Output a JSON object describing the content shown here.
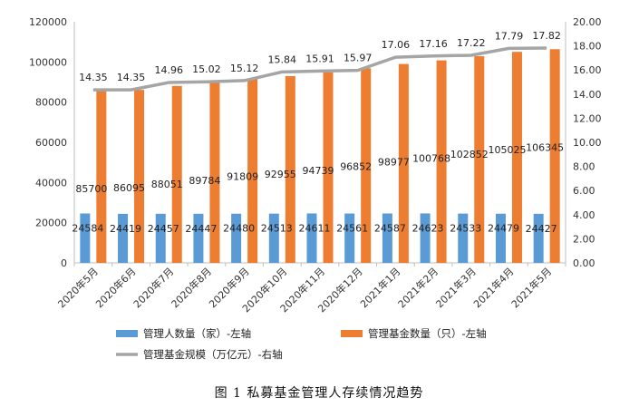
{
  "chart_data": {
    "type": "bar+line",
    "categories": [
      "2020年5月",
      "2020年6月",
      "2020年7月",
      "2020年8月",
      "2020年9月",
      "2020年10月",
      "2020年11月",
      "2020年12月",
      "2021年1月",
      "2021年2月",
      "2021年3月",
      "2021年4月",
      "2021年5月"
    ],
    "series": [
      {
        "name": "管理人数量（家）-左轴",
        "type": "bar",
        "axis": "left",
        "color": "#5B9BD5",
        "values": [
          24584,
          24419,
          24457,
          24447,
          24480,
          24513,
          24611,
          24561,
          24587,
          24623,
          24533,
          24479,
          24427
        ]
      },
      {
        "name": "管理基金数量（只）-左轴",
        "type": "bar",
        "axis": "left",
        "color": "#ED7D31",
        "values": [
          85700,
          86095,
          88051,
          89784,
          91809,
          92955,
          94739,
          96852,
          98977,
          100768,
          102852,
          105025,
          106345
        ]
      },
      {
        "name": "管理基金规模（万亿元）-右轴",
        "type": "line",
        "axis": "right",
        "color": "#A5A5A5",
        "values": [
          14.35,
          14.35,
          14.96,
          15.02,
          15.12,
          15.84,
          15.91,
          15.97,
          17.06,
          17.16,
          17.22,
          17.79,
          17.82
        ]
      }
    ],
    "left_axis": {
      "min": 0,
      "max": 120000,
      "ticks": [
        "0",
        "20000",
        "40000",
        "60000",
        "80000",
        "100000",
        "120000"
      ]
    },
    "right_axis": {
      "min": 0,
      "max": 20,
      "ticks": [
        "0.00",
        "2.00",
        "4.00",
        "6.00",
        "8.00",
        "10.00",
        "12.00",
        "14.00",
        "16.00",
        "18.00",
        "20.00"
      ]
    },
    "grid": false,
    "legend_position": "bottom",
    "caption": "图 1  私募基金管理人存续情况趋势"
  }
}
